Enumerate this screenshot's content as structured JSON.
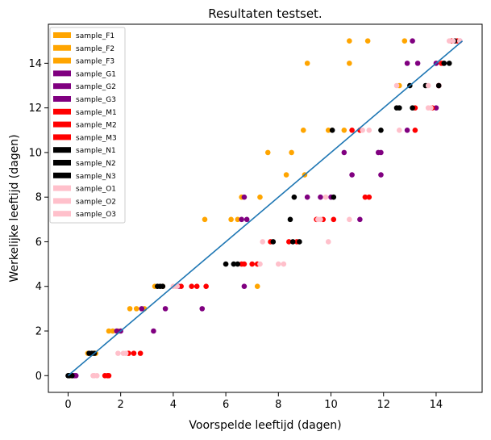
{
  "chart_data": {
    "type": "scatter",
    "title": "Resultaten testset.",
    "xlabel": "Voorspelde leeftijd (dagen)",
    "ylabel": "Werkelijke leeftijd (dagen)",
    "xlim": [
      -0.75,
      15.75
    ],
    "ylim": [
      -0.75,
      15.75
    ],
    "xticks": [
      0,
      2,
      4,
      6,
      8,
      10,
      12,
      14
    ],
    "yticks": [
      0,
      2,
      4,
      6,
      8,
      10,
      12,
      14
    ],
    "grid": false,
    "legend_position": "upper-left",
    "reference_line": {
      "x": [
        0,
        15
      ],
      "y": [
        0,
        15
      ],
      "color": "#1f77b4"
    },
    "series": [
      {
        "name": "sample_F1",
        "color": "#ffa500",
        "points": [
          [
            0.05,
            0
          ],
          [
            0.95,
            1
          ],
          [
            1.9,
            2
          ],
          [
            2.6,
            3
          ],
          [
            3.3,
            4
          ],
          [
            5.2,
            7
          ],
          [
            6.6,
            8
          ],
          [
            8.5,
            10
          ],
          [
            9.1,
            14
          ],
          [
            10.7,
            15
          ]
        ]
      },
      {
        "name": "sample_F2",
        "color": "#ffa500",
        "points": [
          [
            0.1,
            0
          ],
          [
            0.75,
            1
          ],
          [
            1.55,
            2
          ],
          [
            2.35,
            3
          ],
          [
            3.6,
            4
          ],
          [
            6.2,
            7
          ],
          [
            7.3,
            8
          ],
          [
            9.0,
            9
          ],
          [
            9.9,
            11
          ],
          [
            10.7,
            14
          ],
          [
            11.4,
            15
          ],
          [
            12.8,
            15
          ]
        ]
      },
      {
        "name": "sample_F3",
        "color": "#ffa500",
        "points": [
          [
            0.15,
            0
          ],
          [
            1.05,
            1
          ],
          [
            1.7,
            2
          ],
          [
            2.9,
            3
          ],
          [
            7.2,
            4
          ],
          [
            6.45,
            7
          ],
          [
            7.6,
            10
          ],
          [
            8.95,
            11
          ],
          [
            8.3,
            9
          ],
          [
            10.5,
            11
          ],
          [
            12.6,
            13
          ]
        ]
      },
      {
        "name": "sample_G1",
        "color": "#800080",
        "points": [
          [
            0.3,
            0
          ],
          [
            1.85,
            2
          ],
          [
            3.25,
            2
          ],
          [
            3.7,
            3
          ],
          [
            6.6,
            7
          ],
          [
            9.1,
            8
          ],
          [
            10.0,
            8
          ],
          [
            10.8,
            9
          ],
          [
            11.9,
            10
          ],
          [
            12.9,
            14
          ],
          [
            14.0,
            14
          ],
          [
            14.7,
            15
          ]
        ]
      },
      {
        "name": "sample_G2",
        "color": "#800080",
        "points": [
          [
            0.2,
            0
          ],
          [
            2.0,
            2
          ],
          [
            4.2,
            4
          ],
          [
            5.1,
            3
          ],
          [
            6.7,
            4
          ],
          [
            9.6,
            8
          ],
          [
            11.1,
            7
          ],
          [
            11.9,
            9
          ],
          [
            12.9,
            11
          ],
          [
            13.3,
            14
          ],
          [
            14.1,
            13
          ]
        ]
      },
      {
        "name": "sample_G3",
        "color": "#800080",
        "points": [
          [
            0.25,
            0
          ],
          [
            2.8,
            3
          ],
          [
            6.7,
            8
          ],
          [
            6.8,
            7
          ],
          [
            10.5,
            10
          ],
          [
            11.8,
            10
          ],
          [
            13.1,
            15
          ],
          [
            14.0,
            12
          ],
          [
            14.3,
            14
          ],
          [
            14.9,
            15
          ]
        ]
      },
      {
        "name": "sample_M1",
        "color": "#ff0000",
        "points": [
          [
            1.5,
            0
          ],
          [
            2.75,
            1
          ],
          [
            4.9,
            4
          ],
          [
            7.0,
            5
          ],
          [
            9.45,
            7
          ],
          [
            10.8,
            11
          ],
          [
            11.3,
            8
          ],
          [
            13.2,
            11
          ],
          [
            14.1,
            13
          ],
          [
            14.8,
            15
          ]
        ]
      },
      {
        "name": "sample_M2",
        "color": "#ff0000",
        "points": [
          [
            1.4,
            0
          ],
          [
            2.3,
            1
          ],
          [
            4.3,
            4
          ],
          [
            5.25,
            4
          ],
          [
            6.6,
            5
          ],
          [
            7.7,
            6
          ],
          [
            8.4,
            6
          ],
          [
            10.1,
            7
          ],
          [
            11.45,
            8
          ],
          [
            13.2,
            12
          ],
          [
            14.2,
            14
          ]
        ]
      },
      {
        "name": "sample_M3",
        "color": "#ff0000",
        "points": [
          [
            1.55,
            0
          ],
          [
            2.5,
            1
          ],
          [
            4.7,
            4
          ],
          [
            6.7,
            5
          ],
          [
            7.2,
            5
          ],
          [
            8.7,
            6
          ],
          [
            9.7,
            7
          ],
          [
            11.1,
            11
          ],
          [
            13.85,
            12
          ],
          [
            14.6,
            15
          ]
        ]
      },
      {
        "name": "sample_N1",
        "color": "#000000",
        "points": [
          [
            0.0,
            0
          ],
          [
            0.8,
            1
          ],
          [
            3.4,
            4
          ],
          [
            6.0,
            5
          ],
          [
            8.45,
            7
          ],
          [
            10.05,
            11
          ],
          [
            11.9,
            11
          ],
          [
            12.5,
            12
          ],
          [
            14.1,
            13
          ],
          [
            14.5,
            14
          ]
        ]
      },
      {
        "name": "sample_N2",
        "color": "#000000",
        "points": [
          [
            0.05,
            0
          ],
          [
            0.9,
            1
          ],
          [
            3.6,
            4
          ],
          [
            6.3,
            5
          ],
          [
            7.8,
            6
          ],
          [
            8.55,
            6
          ],
          [
            10.1,
            8
          ],
          [
            13.1,
            12
          ],
          [
            13.6,
            13
          ],
          [
            14.7,
            15
          ]
        ]
      },
      {
        "name": "sample_N3",
        "color": "#000000",
        "points": [
          [
            0.15,
            0
          ],
          [
            1.0,
            1
          ],
          [
            3.5,
            4
          ],
          [
            6.45,
            5
          ],
          [
            8.6,
            8
          ],
          [
            8.8,
            6
          ],
          [
            12.6,
            12
          ],
          [
            13.0,
            13
          ],
          [
            14.3,
            14
          ]
        ]
      },
      {
        "name": "sample_O1",
        "color": "#ffc0cb",
        "points": [
          [
            1.0,
            0
          ],
          [
            1.9,
            1
          ],
          [
            4.1,
            4
          ],
          [
            7.3,
            5
          ],
          [
            7.4,
            6
          ],
          [
            9.5,
            7
          ],
          [
            10.7,
            7
          ],
          [
            11.2,
            11
          ],
          [
            12.5,
            13
          ],
          [
            13.7,
            12
          ],
          [
            14.5,
            15
          ]
        ]
      },
      {
        "name": "sample_O2",
        "color": "#ffc0cb",
        "points": [
          [
            0.95,
            0
          ],
          [
            2.1,
            1
          ],
          [
            4.0,
            4
          ],
          [
            8.0,
            5
          ],
          [
            9.8,
            8
          ],
          [
            9.9,
            6
          ],
          [
            12.6,
            11
          ],
          [
            13.8,
            12
          ],
          [
            14.9,
            15
          ]
        ]
      },
      {
        "name": "sample_O3",
        "color": "#ffc0cb",
        "points": [
          [
            1.1,
            0
          ],
          [
            2.2,
            1
          ],
          [
            4.15,
            4
          ],
          [
            8.2,
            5
          ],
          [
            9.6,
            7
          ],
          [
            11.45,
            11
          ],
          [
            13.7,
            13
          ],
          [
            14.65,
            15
          ]
        ]
      }
    ]
  }
}
